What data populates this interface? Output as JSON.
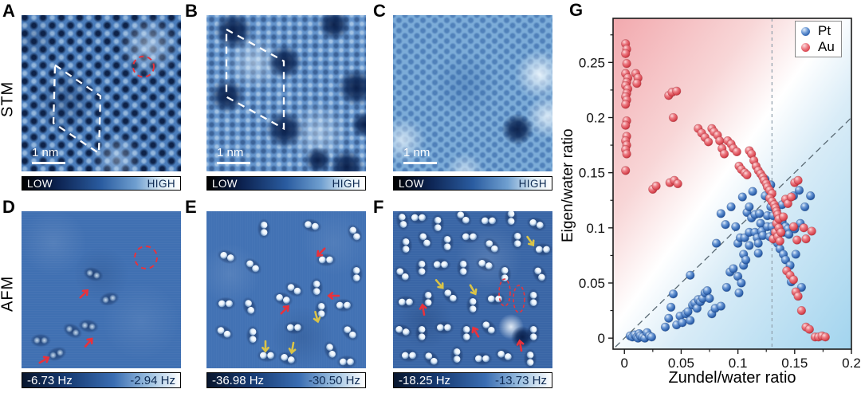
{
  "figure": {
    "background": "#ffffff",
    "row_labels": {
      "stm": "STM",
      "afm": "AFM"
    },
    "panel_letters": [
      "A",
      "B",
      "C",
      "D",
      "E",
      "F",
      "G"
    ],
    "panels": [
      {
        "label": "A",
        "type": "STM",
        "scale_bar": "1 nm",
        "colorbar": {
          "left": "LOW",
          "right": "HIGH"
        }
      },
      {
        "label": "B",
        "type": "STM",
        "scale_bar": "1 nm",
        "colorbar": {
          "left": "LOW",
          "right": "HIGH"
        }
      },
      {
        "label": "C",
        "type": "STM",
        "scale_bar": "1 nm",
        "colorbar": {
          "left": "LOW",
          "right": "HIGH"
        }
      },
      {
        "label": "D",
        "type": "AFM",
        "colorbar": {
          "left": "-6.73 Hz",
          "right": "-2.94 Hz"
        }
      },
      {
        "label": "E",
        "type": "AFM",
        "colorbar": {
          "left": "-36.98 Hz",
          "right": "-30.50 Hz"
        }
      },
      {
        "label": "F",
        "type": "AFM",
        "colorbar": {
          "left": "-18.25 Hz",
          "right": "-13.73 Hz"
        }
      }
    ],
    "annotation_colors": {
      "red_arrow": "#e8323c",
      "yellow_arrow": "#d9c348",
      "dashed_circle": "#e8323c",
      "unit_cell": "#ffffff"
    }
  },
  "chart_data": {
    "type": "scatter",
    "xlabel": "Zundel/water ratio",
    "ylabel": "Eigen/water ratio",
    "xlim": [
      -0.01,
      0.2
    ],
    "ylim": [
      -0.01,
      0.29
    ],
    "x_ticks": [
      0,
      0.05,
      0.1,
      0.15,
      0.2
    ],
    "y_ticks": [
      0,
      0.05,
      0.1,
      0.15,
      0.2,
      0.25
    ],
    "x_tick_labels": [
      "0",
      "0.05",
      "0.1",
      "0.15",
      "0.2"
    ],
    "y_tick_labels": [
      "0",
      "0.05",
      "0.1",
      "0.15",
      "0.2",
      "0.25"
    ],
    "grid": false,
    "background_gradient": {
      "top_left": "#f2a9ae",
      "middle": "#ffffff",
      "bottom_right": "#a2d4ee"
    },
    "reference_lines": [
      {
        "type": "vertical-dashed",
        "x": 0.13,
        "color": "#90a0ac"
      },
      {
        "type": "diagonal-dashed",
        "from": [
          0,
          0
        ],
        "to": [
          0.2,
          0.2
        ],
        "color": "#5a6a74"
      }
    ],
    "legend": {
      "position": "top-right",
      "entries": [
        {
          "name": "Pt",
          "color": "#3b6fbd"
        },
        {
          "name": "Au",
          "color": "#e0555e"
        }
      ]
    },
    "series": [
      {
        "name": "Pt",
        "color": "#3b6fbd",
        "points": [
          [
            0.005,
            0.002
          ],
          [
            0.007,
            0.001
          ],
          [
            0.009,
            0.003
          ],
          [
            0.011,
            0.001
          ],
          [
            0.012,
            0
          ],
          [
            0.013,
            0.004
          ],
          [
            0.014,
            0.002
          ],
          [
            0.016,
            0.001
          ],
          [
            0.018,
            0
          ],
          [
            0.02,
            0.005
          ],
          [
            0.022,
            0.002
          ],
          [
            0.024,
            0.001
          ],
          [
            0.036,
            0.01
          ],
          [
            0.039,
            0.018
          ],
          [
            0.041,
            0.028
          ],
          [
            0.043,
            0.04
          ],
          [
            0.046,
            0.012
          ],
          [
            0.049,
            0.02
          ],
          [
            0.051,
            0.014
          ],
          [
            0.054,
            0.022
          ],
          [
            0.056,
            0.024
          ],
          [
            0.058,
            0.016
          ],
          [
            0.058,
            0.057
          ],
          [
            0.06,
            0.03
          ],
          [
            0.062,
            0.032
          ],
          [
            0.064,
            0.027
          ],
          [
            0.065,
            0.035
          ],
          [
            0.067,
            0.033
          ],
          [
            0.069,
            0.036
          ],
          [
            0.071,
            0.041
          ],
          [
            0.073,
            0.043
          ],
          [
            0.075,
            0.036
          ],
          [
            0.077,
            0.022
          ],
          [
            0.08,
            0.027
          ],
          [
            0.085,
            0.029
          ],
          [
            0.09,
            0.046
          ],
          [
            0.093,
            0.06
          ],
          [
            0.096,
            0.063
          ],
          [
            0.1,
            0.056
          ],
          [
            0.101,
            0.041
          ],
          [
            0.103,
            0.05
          ],
          [
            0.105,
            0.066
          ],
          [
            0.081,
            0.086
          ],
          [
            0.085,
            0.113
          ],
          [
            0.089,
            0.103
          ],
          [
            0.094,
            0.119
          ],
          [
            0.098,
            0.101
          ],
          [
            0.1,
            0.086
          ],
          [
            0.102,
            0.091
          ],
          [
            0.104,
            0.128
          ],
          [
            0.105,
            0.076
          ],
          [
            0.106,
            0.091
          ],
          [
            0.107,
            0.071
          ],
          [
            0.108,
            0.114
          ],
          [
            0.11,
            0.119
          ],
          [
            0.11,
            0.096
          ],
          [
            0.11,
            0.084
          ],
          [
            0.112,
            0.109
          ],
          [
            0.113,
            0.133
          ],
          [
            0.115,
            0.112
          ],
          [
            0.115,
            0.096
          ],
          [
            0.117,
            0.091
          ],
          [
            0.118,
            0.086
          ],
          [
            0.118,
            0.077
          ],
          [
            0.119,
            0.113
          ],
          [
            0.12,
            0.104
          ],
          [
            0.121,
            0.097
          ],
          [
            0.122,
            0.093
          ],
          [
            0.124,
            0.144
          ],
          [
            0.124,
            0.129
          ],
          [
            0.126,
            0.111
          ],
          [
            0.126,
            0.101
          ],
          [
            0.128,
            0.092
          ],
          [
            0.129,
            0.139
          ],
          [
            0.129,
            0.119
          ],
          [
            0.13,
            0.101
          ],
          [
            0.131,
            0.111
          ],
          [
            0.132,
            0.096
          ],
          [
            0.133,
            0.089
          ],
          [
            0.134,
            0.116
          ],
          [
            0.135,
            0.106
          ],
          [
            0.135,
            0.086
          ],
          [
            0.137,
            0.101
          ],
          [
            0.137,
            0.081
          ],
          [
            0.139,
            0.121
          ],
          [
            0.139,
            0.106
          ],
          [
            0.14,
            0.096
          ],
          [
            0.14,
            0.076
          ],
          [
            0.142,
            0.101
          ],
          [
            0.142,
            0.071
          ],
          [
            0.144,
            0.099
          ],
          [
            0.145,
            0.094
          ],
          [
            0.146,
            0.066
          ],
          [
            0.147,
            0.051
          ],
          [
            0.149,
            0.129
          ],
          [
            0.15,
            0.099
          ],
          [
            0.151,
            0.076
          ],
          [
            0.154,
            0.134
          ],
          [
            0.155,
            0.104
          ],
          [
            0.156,
            0.046
          ],
          [
            0.159,
            0.119
          ],
          [
            0.164,
            0.129
          ]
        ]
      },
      {
        "name": "Au",
        "color": "#e0555e",
        "points": [
          [
            0.001,
            0.267
          ],
          [
            0.002,
            0.262
          ],
          [
            0.001,
            0.258
          ],
          [
            0.002,
            0.249
          ],
          [
            0.001,
            0.24
          ],
          [
            0.003,
            0.236
          ],
          [
            0.002,
            0.232
          ],
          [
            0.001,
            0.229
          ],
          [
            0.003,
            0.226
          ],
          [
            0.002,
            0.222
          ],
          [
            0.001,
            0.219
          ],
          [
            0.002,
            0.216
          ],
          [
            0.001,
            0.212
          ],
          [
            0.002,
            0.197
          ],
          [
            0.001,
            0.193
          ],
          [
            0.002,
            0.183
          ],
          [
            0.001,
            0.179
          ],
          [
            0.002,
            0.175
          ],
          [
            0.001,
            0.171
          ],
          [
            0.002,
            0.167
          ],
          [
            0.001,
            0.152
          ],
          [
            0.01,
            0.24
          ],
          [
            0.012,
            0.236
          ],
          [
            0.011,
            0.231
          ],
          [
            0.025,
            0.135
          ],
          [
            0.028,
            0.138
          ],
          [
            0.039,
            0.22
          ],
          [
            0.042,
            0.223
          ],
          [
            0.046,
            0.224
          ],
          [
            0.043,
            0.2
          ],
          [
            0.04,
            0.141
          ],
          [
            0.044,
            0.143
          ],
          [
            0.047,
            0.14
          ],
          [
            0.065,
            0.19
          ],
          [
            0.068,
            0.186
          ],
          [
            0.071,
            0.182
          ],
          [
            0.074,
            0.178
          ],
          [
            0.077,
            0.19
          ],
          [
            0.079,
            0.187
          ],
          [
            0.082,
            0.184
          ],
          [
            0.084,
            0.179
          ],
          [
            0.086,
            0.172
          ],
          [
            0.088,
            0.167
          ],
          [
            0.091,
            0.179
          ],
          [
            0.094,
            0.176
          ],
          [
            0.096,
            0.172
          ],
          [
            0.099,
            0.169
          ],
          [
            0.101,
            0.156
          ],
          [
            0.103,
            0.153
          ],
          [
            0.106,
            0.15
          ],
          [
            0.108,
            0.148
          ],
          [
            0.11,
            0.17
          ],
          [
            0.112,
            0.167
          ],
          [
            0.114,
            0.161
          ],
          [
            0.116,
            0.156
          ],
          [
            0.118,
            0.152
          ],
          [
            0.12,
            0.149
          ],
          [
            0.122,
            0.146
          ],
          [
            0.123,
            0.143
          ],
          [
            0.125,
            0.14
          ],
          [
            0.126,
            0.137
          ],
          [
            0.128,
            0.134
          ],
          [
            0.13,
            0.131
          ],
          [
            0.128,
            0.127
          ],
          [
            0.13,
            0.124
          ],
          [
            0.131,
            0.09
          ],
          [
            0.132,
            0.121
          ],
          [
            0.133,
            0.118
          ],
          [
            0.133,
            0.096
          ],
          [
            0.134,
            0.115
          ],
          [
            0.134,
            0.104
          ],
          [
            0.135,
            0.112
          ],
          [
            0.135,
            0.092
          ],
          [
            0.136,
            0.108
          ],
          [
            0.136,
            0.1
          ],
          [
            0.137,
            0.088
          ],
          [
            0.138,
            0.096
          ],
          [
            0.14,
            0.11
          ],
          [
            0.142,
            0.126
          ],
          [
            0.144,
            0.122
          ],
          [
            0.147,
            0.128
          ],
          [
            0.15,
            0.141
          ],
          [
            0.153,
            0.143
          ],
          [
            0.149,
            0.101
          ],
          [
            0.152,
            0.089
          ],
          [
            0.158,
            0.1
          ],
          [
            0.16,
            0.09
          ],
          [
            0.165,
            0.097
          ],
          [
            0.143,
            0.061
          ],
          [
            0.146,
            0.057
          ],
          [
            0.149,
            0.053
          ],
          [
            0.151,
            0.042
          ],
          [
            0.153,
            0.038
          ],
          [
            0.156,
            0.025
          ],
          [
            0.16,
            0.01
          ],
          [
            0.163,
            0.008
          ],
          [
            0.168,
            0.001
          ],
          [
            0.171,
            0.001
          ],
          [
            0.174,
            0.002
          ],
          [
            0.177,
            0.001
          ]
        ]
      }
    ]
  }
}
